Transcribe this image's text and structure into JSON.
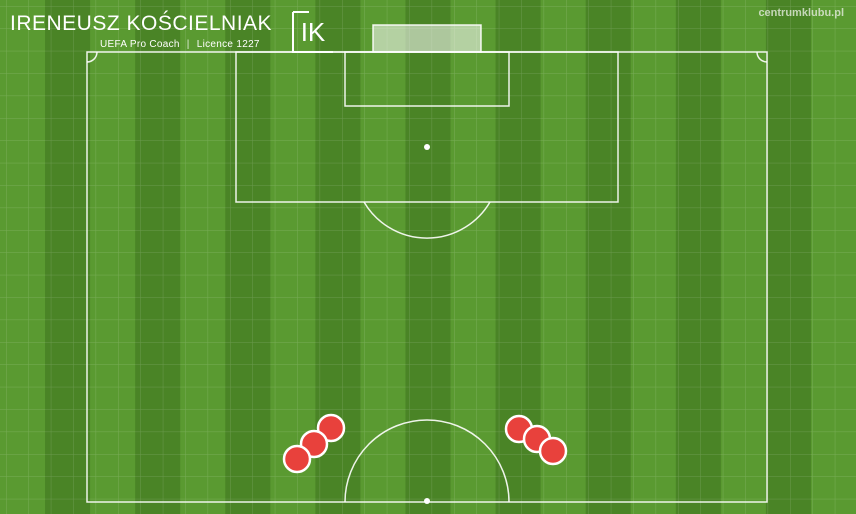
{
  "brand": {
    "name": "IRENEUSZ KOŚCIELNIAK",
    "role": "UEFA Pro Coach",
    "licence": "Licence 1227",
    "logo": "IK",
    "website": "centrumklubu.pl"
  },
  "colors": {
    "grass_dark": "#4a8426",
    "grass_light": "#5a9a31",
    "line": "#ffffff",
    "player": "#e8413c"
  },
  "players_left_count": 3,
  "players_right_count": 3
}
